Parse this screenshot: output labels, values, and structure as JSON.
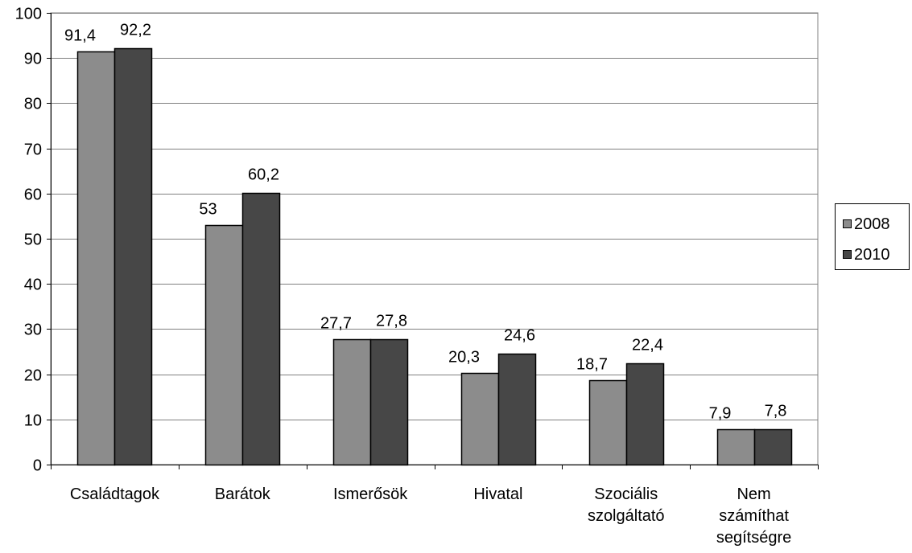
{
  "chart_data": {
    "type": "bar",
    "title": "",
    "xlabel": "",
    "ylabel": "",
    "ylim": [
      0,
      100
    ],
    "yticks": [
      "0",
      "10",
      "20",
      "30",
      "40",
      "50",
      "60",
      "70",
      "80",
      "90",
      "100"
    ],
    "categories": [
      [
        "Családtagok"
      ],
      [
        "Barátok"
      ],
      [
        "Ismerősök"
      ],
      [
        "Hivatal"
      ],
      [
        "Szociális",
        "szolgáltató"
      ],
      [
        "Nem",
        "számíthat",
        "segítségre"
      ]
    ],
    "series": [
      {
        "name": "2008",
        "color": "#8c8c8c",
        "values": [
          91.4,
          53,
          27.7,
          20.3,
          18.7,
          7.9
        ],
        "labels": [
          "91,4",
          "53",
          "27,7",
          "20,3",
          "18,7",
          "7,9"
        ]
      },
      {
        "name": "2010",
        "color": "#474747",
        "values": [
          92.2,
          60.2,
          27.8,
          24.6,
          22.4,
          7.8
        ],
        "labels": [
          "92,2",
          "60,2",
          "27,8",
          "24,6",
          "22,4",
          "7,8"
        ]
      }
    ],
    "grid": true,
    "legend_position": "right"
  }
}
